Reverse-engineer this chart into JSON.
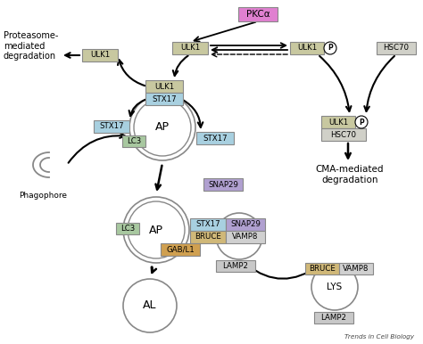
{
  "bg_color": "#ffffff",
  "figsize": [
    4.74,
    3.86
  ],
  "dpi": 100,
  "labels": {
    "proteasome": "Proteasome-\nmediated\ndegradation",
    "phagophore": "Phagophore",
    "cma": "CMA-mediated\ndegradation",
    "trends": "Trends in Cell Biology"
  },
  "box_colors": {
    "ULK1": "#c8c8a0",
    "STX17": "#a8d0e0",
    "LC3": "#a8c8a0",
    "SNAP29": "#b0a0d0",
    "BRUCE": "#d0b878",
    "VAMP8": "#d0d0d0",
    "GABL1": "#d0a050",
    "LAMP2": "#c8c8c8",
    "PKCa": "#e080d0",
    "HSC70": "#d0d0c8"
  }
}
